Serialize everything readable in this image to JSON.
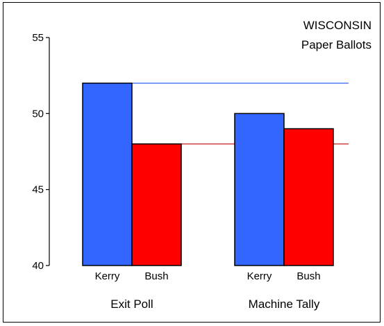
{
  "chart_data": {
    "type": "bar",
    "title_lines": [
      "WISCONSIN",
      "Paper Ballots"
    ],
    "ylim": [
      40,
      55
    ],
    "yticks": [
      40,
      45,
      50,
      55
    ],
    "grid": false,
    "groups": [
      {
        "label": "Exit Poll",
        "bars": [
          {
            "label": "Kerry",
            "value": 52,
            "color": "#3366ff"
          },
          {
            "label": "Bush",
            "value": 48,
            "color": "#ff0000"
          }
        ]
      },
      {
        "label": "Machine Tally",
        "bars": [
          {
            "label": "Kerry",
            "value": 50,
            "color": "#3366ff"
          },
          {
            "label": "Bush",
            "value": 49,
            "color": "#ff0000"
          }
        ]
      }
    ],
    "reference_lines": [
      {
        "value": 52,
        "color": "#3366ff"
      },
      {
        "value": 48,
        "color": "#c00000"
      }
    ]
  }
}
